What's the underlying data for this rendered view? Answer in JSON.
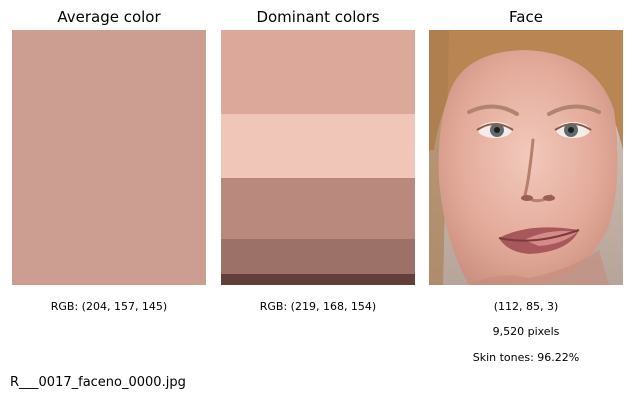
{
  "panels": {
    "average": {
      "title": "Average color",
      "color": "#cc9d91",
      "caption": "RGB: (204, 157, 145)"
    },
    "dominant": {
      "title": "Dominant colors",
      "caption": "RGB: (219, 168, 154)",
      "bands": [
        {
          "color": "#dba89a",
          "share": 0.329
        },
        {
          "color": "#f0c6b8",
          "share": 0.251
        },
        {
          "color": "#ba897e",
          "share": 0.239
        },
        {
          "color": "#9b7168",
          "share": 0.137
        },
        {
          "color": "#633f3b",
          "share": 0.044
        }
      ]
    },
    "face": {
      "title": "Face",
      "caption_position": "(112, 85, 3)",
      "caption_pixels": "9,520 pixels",
      "caption_skin": "Skin tones: 96.22%"
    }
  },
  "filename": "R___0017_faceno_0000.jpg"
}
